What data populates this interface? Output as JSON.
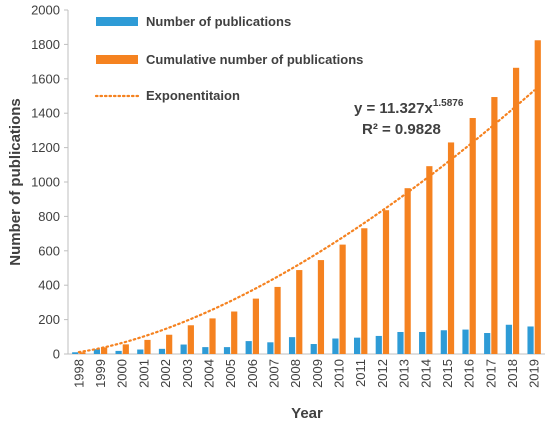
{
  "chart_data": {
    "type": "bar",
    "title": "",
    "xlabel": "Year",
    "ylabel": "Number of publications",
    "ylim": [
      0,
      2000
    ],
    "yticks": [
      0,
      200,
      400,
      600,
      800,
      1000,
      1200,
      1400,
      1600,
      1800,
      2000
    ],
    "grid": false,
    "legend_position": "top-left",
    "categories": [
      "1998",
      "1999",
      "2000",
      "2001",
      "2002",
      "2003",
      "2004",
      "2005",
      "2006",
      "2007",
      "2008",
      "2009",
      "2010",
      "2011",
      "2012",
      "2013",
      "2014",
      "2015",
      "2016",
      "2017",
      "2018",
      "2019"
    ],
    "series": [
      {
        "name": "Number of publications",
        "color": "#2E9BD6",
        "values": [
          10,
          28,
          18,
          26,
          30,
          55,
          40,
          40,
          75,
          68,
          98,
          58,
          90,
          95,
          105,
          128,
          128,
          138,
          142,
          122,
          170,
          160
        ]
      },
      {
        "name": "Cumulative number of publications",
        "color": "#F58220",
        "values": [
          10,
          38,
          56,
          82,
          112,
          167,
          207,
          247,
          322,
          390,
          488,
          546,
          636,
          731,
          836,
          964,
          1092,
          1230,
          1372,
          1494,
          1664,
          1824
        ]
      }
    ],
    "trendline": {
      "name": "Exponentitaion",
      "color": "#F58220",
      "style": "dotted",
      "coefficient": 11.327,
      "exponent": 1.5876,
      "equation_main": "y = 11.327x",
      "equation_exp": "1.5876",
      "r_squared": "R² = 0.9828"
    }
  }
}
